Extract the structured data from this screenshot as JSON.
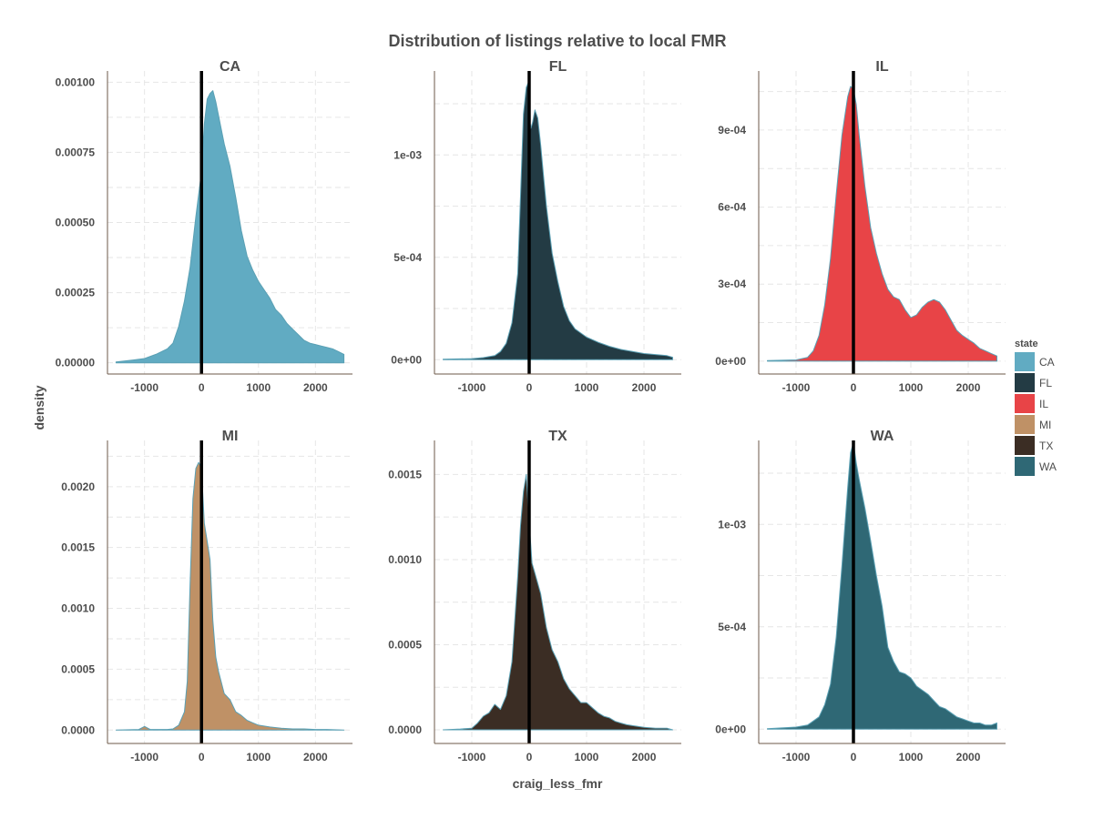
{
  "chart_data": {
    "type": "area",
    "title": "Distribution of listings relative to local FMR",
    "xlabel": "craig_less_fmr",
    "ylabel": "density",
    "xlim": [
      -1650,
      2650
    ],
    "x_ticks": [
      -1000,
      0,
      1000,
      2000
    ],
    "x_tick_labels": [
      "-1000",
      "0",
      "1000",
      "2000"
    ],
    "vline_x": 0,
    "grid": true,
    "legend": {
      "title": "state",
      "position": "right",
      "entries": [
        {
          "label": "CA",
          "color": "#61abc2"
        },
        {
          "label": "FL",
          "color": "#233b44"
        },
        {
          "label": "IL",
          "color": "#e84447"
        },
        {
          "label": "MI",
          "color": "#bf9166"
        },
        {
          "label": "TX",
          "color": "#3b2d24"
        },
        {
          "label": "WA",
          "color": "#2f6875"
        }
      ]
    },
    "panels": [
      {
        "state": "CA",
        "color": "#61abc2",
        "ylim": [
          -4e-05,
          0.00104
        ],
        "y_ticks": [
          0,
          0.00025,
          0.0005,
          0.00075,
          0.001
        ],
        "y_tick_labels": [
          "0.00000",
          "0.00025",
          "0.00050",
          "0.00075",
          "0.00100"
        ],
        "x": [
          -1500,
          -1200,
          -1000,
          -800,
          -600,
          -500,
          -400,
          -300,
          -200,
          -100,
          0,
          50,
          100,
          150,
          200,
          250,
          300,
          350,
          400,
          500,
          600,
          700,
          800,
          900,
          1000,
          1100,
          1200,
          1300,
          1400,
          1500,
          1600,
          1700,
          1800,
          1900,
          2000,
          2100,
          2200,
          2300,
          2400,
          2500
        ],
        "y": [
          3e-06,
          1e-05,
          1.5e-05,
          3e-05,
          5e-05,
          7e-05,
          0.00013,
          0.00022,
          0.00034,
          0.00052,
          0.00068,
          0.00085,
          0.00094,
          0.00096,
          0.00097,
          0.00093,
          0.00088,
          0.00083,
          0.00078,
          0.0007,
          0.00059,
          0.00047,
          0.00038,
          0.00033,
          0.00029,
          0.00026,
          0.00023,
          0.00019,
          0.00017,
          0.00014,
          0.00012,
          0.0001,
          8e-05,
          7e-05,
          6.5e-05,
          6e-05,
          5.5e-05,
          5e-05,
          4e-05,
          3e-05
        ]
      },
      {
        "state": "FL",
        "color": "#233b44",
        "ylim": [
          -7e-05,
          0.00141
        ],
        "y_ticks": [
          0,
          0.0005,
          0.001
        ],
        "y_tick_labels": [
          "0e+00",
          "5e-04",
          "1e-03"
        ],
        "x": [
          -1500,
          -1000,
          -800,
          -600,
          -500,
          -400,
          -300,
          -200,
          -150,
          -100,
          -50,
          -20,
          0,
          30,
          60,
          100,
          150,
          200,
          250,
          300,
          400,
          500,
          600,
          700,
          800,
          900,
          1000,
          1200,
          1400,
          1600,
          1800,
          2000,
          2200,
          2400,
          2500
        ],
        "y": [
          2e-06,
          5e-06,
          1e-05,
          2e-05,
          4e-05,
          8e-05,
          0.00018,
          0.00042,
          0.0008,
          0.0012,
          0.00133,
          0.00135,
          0.00118,
          0.00113,
          0.00116,
          0.00122,
          0.00118,
          0.00105,
          0.0009,
          0.00075,
          0.00052,
          0.00038,
          0.00026,
          0.00019,
          0.00015,
          0.00013,
          0.00011,
          8.5e-05,
          6.5e-05,
          5e-05,
          4e-05,
          3e-05,
          2.5e-05,
          2e-05,
          1.2e-05
        ]
      },
      {
        "state": "IL",
        "color": "#e84447",
        "ylim": [
          -5e-05,
          0.00113
        ],
        "y_ticks": [
          0,
          0.0003,
          0.0006,
          0.0009
        ],
        "y_tick_labels": [
          "0e+00",
          "3e-04",
          "6e-04",
          "9e-04"
        ],
        "x": [
          -1500,
          -1000,
          -800,
          -700,
          -600,
          -500,
          -400,
          -300,
          -200,
          -100,
          -50,
          0,
          50,
          100,
          200,
          300,
          400,
          500,
          600,
          700,
          800,
          900,
          1000,
          1100,
          1200,
          1300,
          1400,
          1500,
          1600,
          1700,
          1800,
          1900,
          2000,
          2100,
          2200,
          2300,
          2400,
          2500
        ],
        "y": [
          2e-06,
          5e-06,
          1.5e-05,
          4e-05,
          0.0001,
          0.00022,
          0.0004,
          0.00065,
          0.00088,
          0.00103,
          0.00107,
          0.00106,
          0.001,
          0.00088,
          0.00068,
          0.00052,
          0.00042,
          0.00034,
          0.00028,
          0.00025,
          0.00024,
          0.0002,
          0.00017,
          0.00018,
          0.00021,
          0.00023,
          0.00024,
          0.00023,
          0.0002,
          0.00016,
          0.00012,
          0.0001,
          8.5e-05,
          7e-05,
          5e-05,
          4e-05,
          3e-05,
          2e-05
        ]
      },
      {
        "state": "MI",
        "color": "#bf9166",
        "ylim": [
          -0.00011,
          0.00238
        ],
        "y_ticks": [
          0,
          0.0005,
          0.001,
          0.0015,
          0.002
        ],
        "y_tick_labels": [
          "0.0000",
          "0.0005",
          "0.0010",
          "0.0015",
          "0.0020"
        ],
        "x": [
          -1500,
          -1100,
          -1000,
          -900,
          -600,
          -500,
          -400,
          -300,
          -250,
          -200,
          -150,
          -100,
          -50,
          0,
          50,
          100,
          150,
          200,
          250,
          300,
          400,
          500,
          600,
          700,
          800,
          900,
          1000,
          1200,
          1400,
          1600,
          1800,
          2000,
          2200,
          2500
        ],
        "y": [
          0,
          5e-06,
          3e-05,
          5e-06,
          5e-06,
          1e-05,
          4e-05,
          0.00015,
          0.0004,
          0.0012,
          0.0019,
          0.00215,
          0.0022,
          0.00215,
          0.0017,
          0.00155,
          0.0014,
          0.0009,
          0.0006,
          0.00048,
          0.0003,
          0.00025,
          0.00015,
          0.00012,
          8e-05,
          6e-05,
          4e-05,
          2.5e-05,
          1.5e-05,
          1e-05,
          1e-05,
          5e-06,
          5e-06,
          0
        ]
      },
      {
        "state": "TX",
        "color": "#3b2d24",
        "ylim": [
          -8e-05,
          0.0017
        ],
        "y_ticks": [
          0,
          0.0005,
          0.001,
          0.0015
        ],
        "y_tick_labels": [
          "0.0000",
          "0.0005",
          "0.0010",
          "0.0015"
        ],
        "x": [
          -1500,
          -1200,
          -1000,
          -900,
          -800,
          -700,
          -600,
          -500,
          -400,
          -300,
          -200,
          -150,
          -100,
          -50,
          0,
          50,
          100,
          200,
          300,
          400,
          500,
          600,
          700,
          800,
          900,
          1000,
          1100,
          1200,
          1300,
          1400,
          1500,
          1600,
          1700,
          1800,
          2000,
          2200,
          2400,
          2500
        ],
        "y": [
          0,
          5e-06,
          1e-05,
          4e-05,
          8e-05,
          0.0001,
          0.00015,
          0.00012,
          0.0002,
          0.0004,
          0.0009,
          0.0012,
          0.0014,
          0.0015,
          0.00122,
          0.00098,
          0.00092,
          0.0008,
          0.0006,
          0.00047,
          0.0004,
          0.0003,
          0.00024,
          0.0002,
          0.00016,
          0.00016,
          0.00013,
          0.0001,
          8e-05,
          7e-05,
          5e-05,
          4e-05,
          3e-05,
          2.5e-05,
          1.5e-05,
          1e-05,
          1e-05,
          0
        ]
      },
      {
        "state": "WA",
        "color": "#2f6875",
        "ylim": [
          -7e-05,
          0.00141
        ],
        "y_ticks": [
          0,
          0.0005,
          0.001
        ],
        "y_tick_labels": [
          "0e+00",
          "5e-04",
          "1e-03"
        ],
        "x": [
          -1500,
          -1000,
          -800,
          -600,
          -500,
          -400,
          -300,
          -200,
          -100,
          -50,
          0,
          50,
          100,
          150,
          200,
          300,
          400,
          500,
          600,
          700,
          800,
          900,
          1000,
          1100,
          1200,
          1300,
          1400,
          1500,
          1600,
          1700,
          1800,
          1900,
          2000,
          2100,
          2200,
          2300,
          2400,
          2500
        ],
        "y": [
          2e-06,
          1e-05,
          2e-05,
          6e-05,
          0.00012,
          0.00022,
          0.00045,
          0.0008,
          0.00118,
          0.00135,
          0.0014,
          0.0013,
          0.00122,
          0.00115,
          0.00108,
          0.00092,
          0.00075,
          0.0006,
          0.0004,
          0.00033,
          0.00028,
          0.00027,
          0.00025,
          0.00021,
          0.00019,
          0.00017,
          0.00014,
          0.00011,
          0.0001,
          8e-05,
          6e-05,
          5e-05,
          4e-05,
          3e-05,
          3e-05,
          2e-05,
          2e-05,
          3e-05
        ]
      }
    ]
  }
}
